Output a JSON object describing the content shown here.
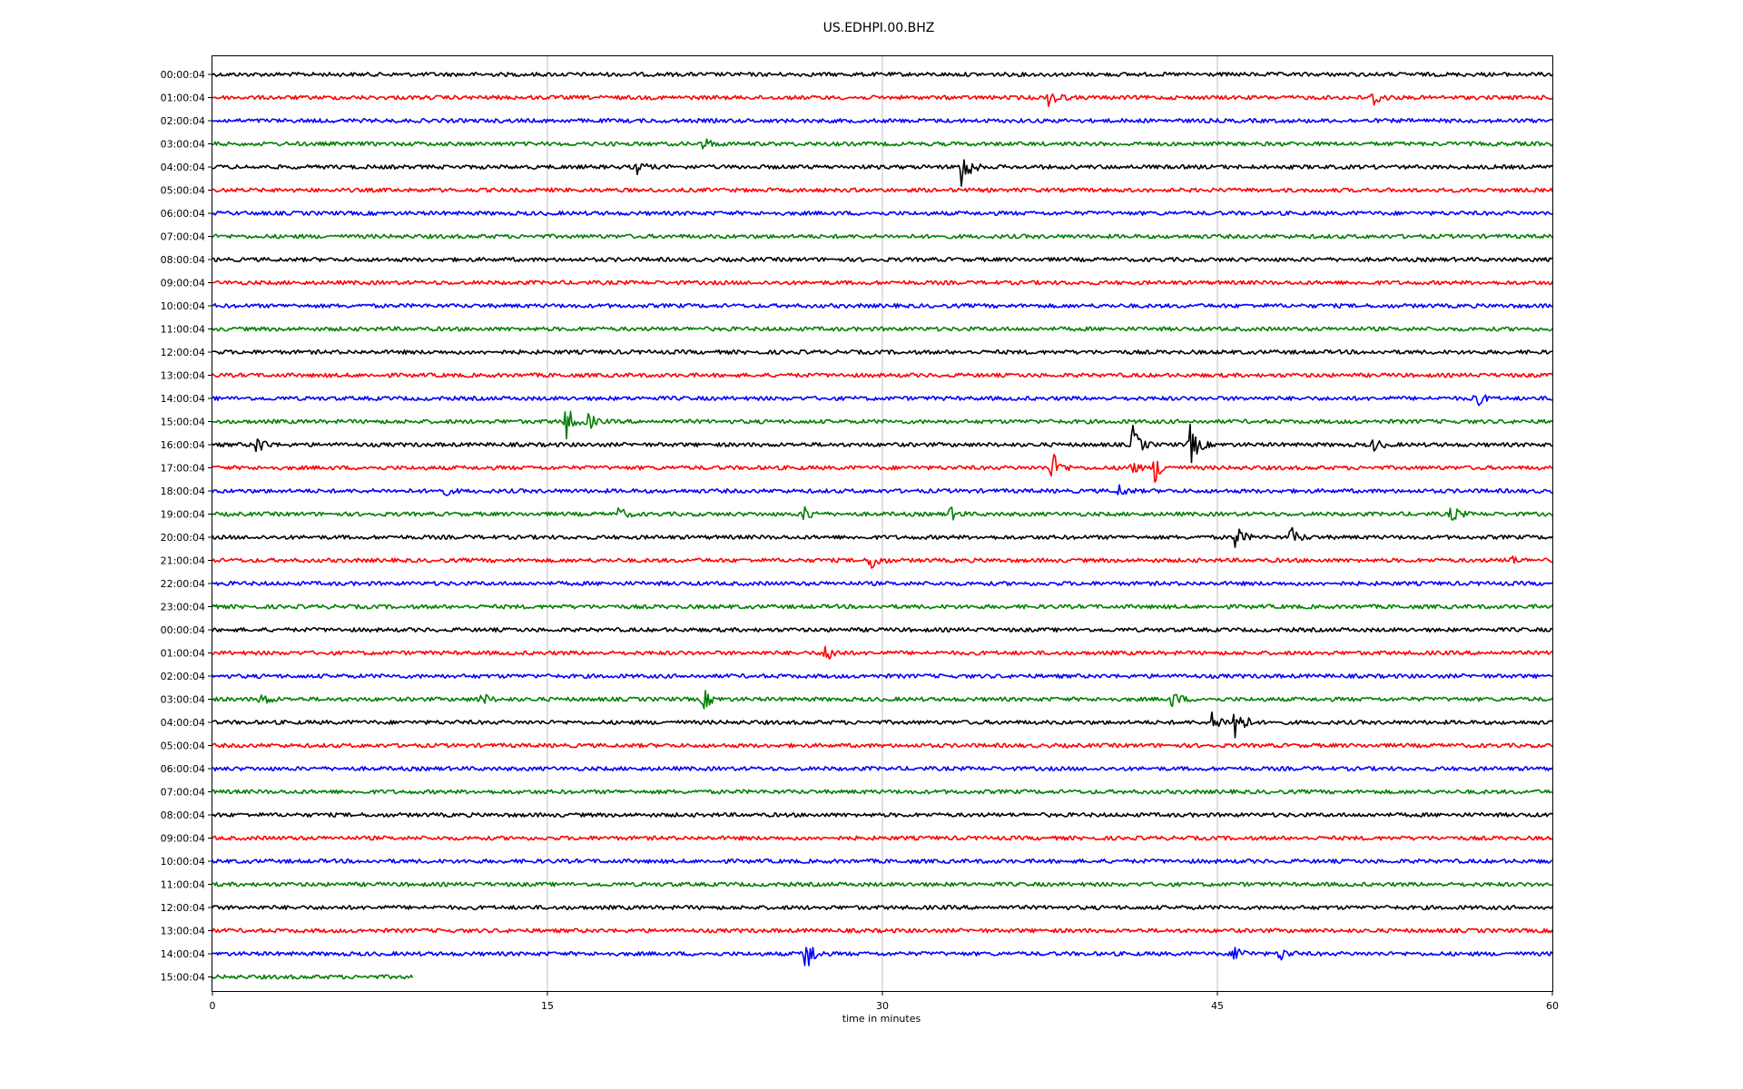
{
  "chart_data": {
    "type": "line",
    "title": "US.EDHPI.00.BHZ",
    "xlabel": "time in minutes",
    "ylabel": "",
    "xlim": [
      0,
      60
    ],
    "x_ticks": [
      "0",
      "15",
      "30",
      "45",
      "60"
    ],
    "x_tick_values": [
      0,
      15,
      30,
      45,
      60
    ],
    "grid": "vertical",
    "legend": "none",
    "trace_colors": [
      "#000000",
      "#ff0000",
      "#0000ff",
      "#008000"
    ],
    "row_labels": [
      "00:00:04",
      "01:00:04",
      "02:00:04",
      "03:00:04",
      "04:00:04",
      "05:00:04",
      "06:00:04",
      "07:00:04",
      "08:00:04",
      "09:00:04",
      "10:00:04",
      "11:00:04",
      "12:00:04",
      "13:00:04",
      "14:00:04",
      "15:00:04",
      "16:00:04",
      "17:00:04",
      "18:00:04",
      "19:00:04",
      "20:00:04",
      "21:00:04",
      "22:00:04",
      "23:00:04",
      "00:00:04",
      "01:00:04",
      "02:00:04",
      "03:00:04",
      "04:00:04",
      "05:00:04",
      "06:00:04",
      "07:00:04",
      "08:00:04",
      "09:00:04",
      "10:00:04",
      "11:00:04",
      "12:00:04",
      "13:00:04",
      "14:00:04",
      "15:00:04"
    ],
    "last_row_end_minute": 9,
    "events": [
      {
        "row": 1,
        "minute": 37.5,
        "amp": 1.0
      },
      {
        "row": 1,
        "minute": 52.0,
        "amp": 0.8
      },
      {
        "row": 3,
        "minute": 22.0,
        "amp": 0.5
      },
      {
        "row": 4,
        "minute": 19.0,
        "amp": 0.6
      },
      {
        "row": 4,
        "minute": 33.5,
        "amp": 2.2
      },
      {
        "row": 14,
        "minute": 56.5,
        "amp": 0.9
      },
      {
        "row": 15,
        "minute": 15.8,
        "amp": 1.6
      },
      {
        "row": 15,
        "minute": 16.8,
        "amp": 0.7
      },
      {
        "row": 16,
        "minute": 2.0,
        "amp": 0.8
      },
      {
        "row": 16,
        "minute": 41.2,
        "amp": 1.6
      },
      {
        "row": 16,
        "minute": 43.8,
        "amp": 1.8
      },
      {
        "row": 16,
        "minute": 52.0,
        "amp": 0.5
      },
      {
        "row": 17,
        "minute": 37.6,
        "amp": 1.4
      },
      {
        "row": 17,
        "minute": 41.0,
        "amp": 0.8
      },
      {
        "row": 17,
        "minute": 42.2,
        "amp": 1.2
      },
      {
        "row": 18,
        "minute": 10.2,
        "amp": 0.6
      },
      {
        "row": 18,
        "minute": 40.6,
        "amp": 0.5
      },
      {
        "row": 19,
        "minute": 18.2,
        "amp": 0.5
      },
      {
        "row": 19,
        "minute": 26.5,
        "amp": 0.7
      },
      {
        "row": 19,
        "minute": 33.0,
        "amp": 0.6
      },
      {
        "row": 19,
        "minute": 55.5,
        "amp": 0.7
      },
      {
        "row": 20,
        "minute": 45.8,
        "amp": 1.0
      },
      {
        "row": 20,
        "minute": 48.3,
        "amp": 0.8
      },
      {
        "row": 21,
        "minute": 29.5,
        "amp": 0.9
      },
      {
        "row": 21,
        "minute": 58.0,
        "amp": 0.5
      },
      {
        "row": 25,
        "minute": 27.5,
        "amp": 0.9
      },
      {
        "row": 27,
        "minute": 2.2,
        "amp": 0.6
      },
      {
        "row": 27,
        "minute": 12.0,
        "amp": 0.6
      },
      {
        "row": 27,
        "minute": 22.0,
        "amp": 0.8
      },
      {
        "row": 27,
        "minute": 43.0,
        "amp": 0.7
      },
      {
        "row": 28,
        "minute": 44.8,
        "amp": 1.0
      },
      {
        "row": 28,
        "minute": 45.8,
        "amp": 2.0
      },
      {
        "row": 38,
        "minute": 26.5,
        "amp": 2.2
      },
      {
        "row": 38,
        "minute": 45.8,
        "amp": 0.8
      },
      {
        "row": 38,
        "minute": 47.8,
        "amp": 0.6
      }
    ]
  }
}
